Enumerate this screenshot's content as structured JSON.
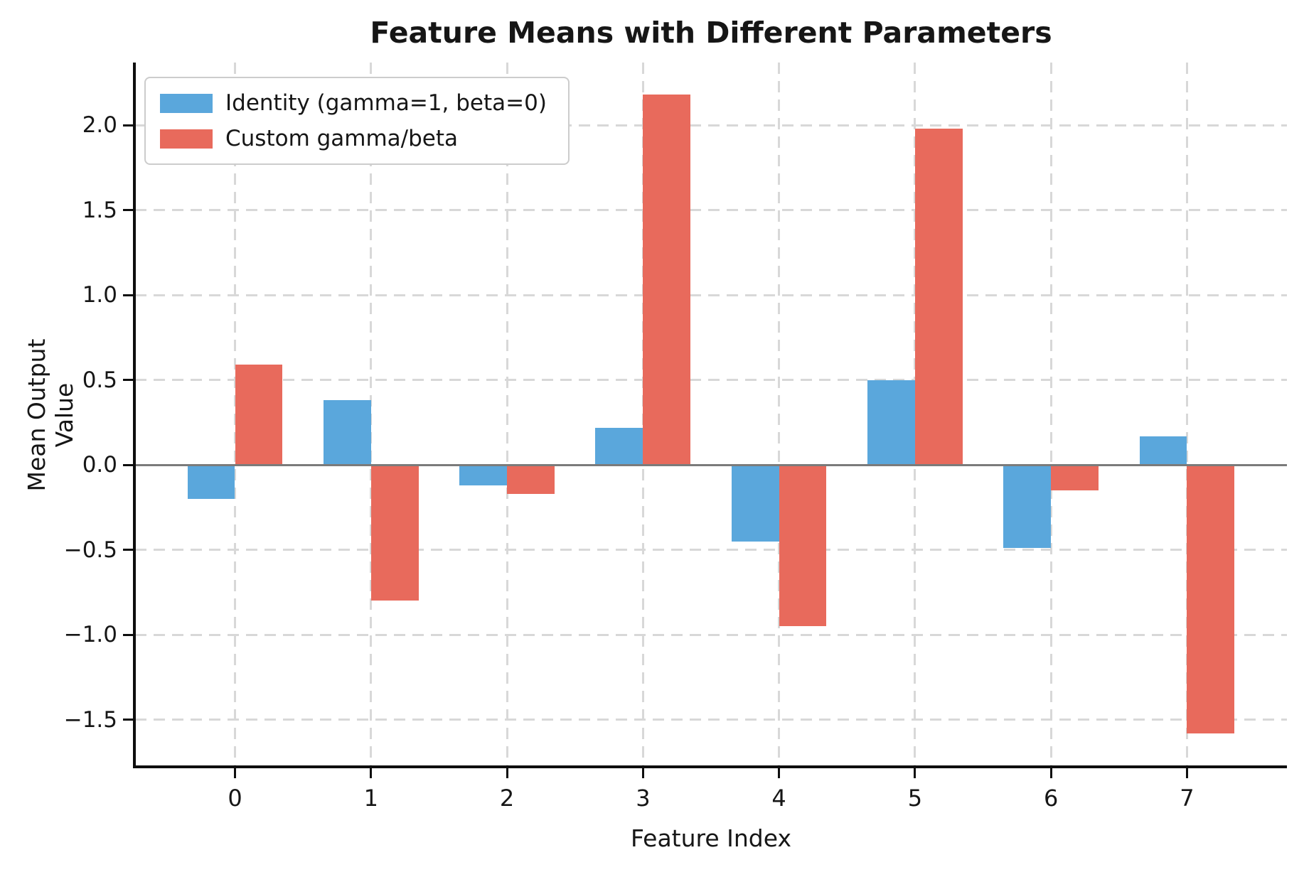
{
  "chart_data": {
    "type": "bar",
    "title": "Feature Means with Different Parameters",
    "xlabel": "Feature Index",
    "ylabel": "Mean Output Value",
    "categories": [
      "0",
      "1",
      "2",
      "3",
      "4",
      "5",
      "6",
      "7"
    ],
    "series": [
      {
        "name": "Identity (gamma=1, beta=0)",
        "color": "#5AA7DC",
        "values": [
          -0.2,
          0.38,
          -0.12,
          0.22,
          -0.45,
          0.5,
          -0.49,
          0.17
        ]
      },
      {
        "name": "Custom gamma/beta",
        "color": "#E86A5C",
        "values": [
          0.59,
          -0.8,
          -0.17,
          2.18,
          -0.95,
          1.98,
          -0.15,
          -1.58
        ]
      }
    ],
    "yticks": [
      2.0,
      1.5,
      1.0,
      0.5,
      0.0,
      -0.5,
      -1.0,
      -1.5
    ],
    "ylim": [
      -1.77,
      2.37
    ],
    "xlim": [
      -0.735,
      7.735
    ],
    "bar_width_category_units": 0.35,
    "grid": true,
    "legend_position": "upper left",
    "colors": {
      "grid": "#d8d8d8",
      "zero_line": "#7b7b7b",
      "spine": "#0e0e0e",
      "background": "#ffffff",
      "text": "#161616"
    }
  }
}
